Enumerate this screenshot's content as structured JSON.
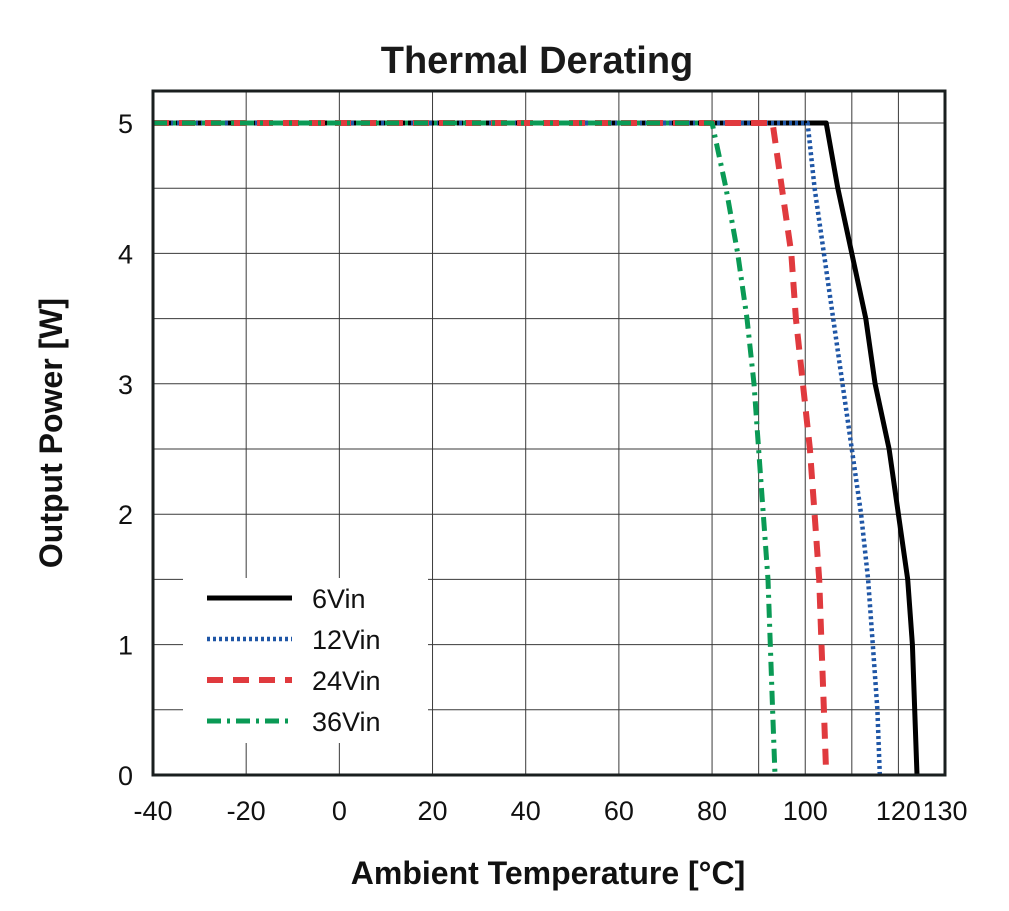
{
  "chart_data": {
    "type": "line",
    "title": "Thermal Derating",
    "xlabel": "Ambient Temperature [°C]",
    "ylabel": "Output Power [W]",
    "xlim": [
      -40,
      130
    ],
    "ylim": [
      0,
      5
    ],
    "x_ticks": [
      -40,
      -20,
      0,
      20,
      40,
      60,
      80,
      100,
      120,
      130
    ],
    "x_tick_labels": [
      "-40",
      "-20",
      "0",
      "20",
      "40",
      "60",
      "80",
      "100",
      "120",
      "130"
    ],
    "y_ticks": [
      0,
      1,
      2,
      3,
      4,
      5
    ],
    "y_tick_labels": [
      "0",
      "1",
      "2",
      "3",
      "4",
      "5"
    ],
    "grid_x_extra": [
      90,
      110
    ],
    "grid_y_minor": true,
    "legend_position": "bottom-left",
    "series": [
      {
        "name": "6Vin",
        "color": "#000000",
        "style": "solid",
        "points": [
          [
            -40,
            5
          ],
          [
            104.5,
            5
          ],
          [
            107,
            4.5
          ],
          [
            110,
            4.0
          ],
          [
            113,
            3.5
          ],
          [
            115,
            3.0
          ],
          [
            118,
            2.5
          ],
          [
            120,
            2.0
          ],
          [
            122,
            1.5
          ],
          [
            123,
            1.0
          ],
          [
            123.5,
            0.5
          ],
          [
            124,
            0
          ]
        ]
      },
      {
        "name": "12Vin",
        "color": "#1f56a6",
        "style": "dotted",
        "points": [
          [
            -40,
            5
          ],
          [
            100.5,
            5
          ],
          [
            102,
            4.5
          ],
          [
            104,
            4.0
          ],
          [
            106,
            3.5
          ],
          [
            108,
            3.0
          ],
          [
            110,
            2.5
          ],
          [
            112,
            2.0
          ],
          [
            113.5,
            1.5
          ],
          [
            114.5,
            1.0
          ],
          [
            115.5,
            0.5
          ],
          [
            116,
            0
          ]
        ]
      },
      {
        "name": "24Vin",
        "color": "#e03a3e",
        "style": "dashed",
        "points": [
          [
            -40,
            5
          ],
          [
            93,
            5
          ],
          [
            95,
            4.5
          ],
          [
            97,
            4.0
          ],
          [
            98,
            3.5
          ],
          [
            99.5,
            3.0
          ],
          [
            101,
            2.5
          ],
          [
            102,
            2.0
          ],
          [
            103,
            1.5
          ],
          [
            103.5,
            1.0
          ],
          [
            104,
            0.5
          ],
          [
            104.5,
            0
          ]
        ]
      },
      {
        "name": "36Vin",
        "color": "#0a9a55",
        "style": "dashdot",
        "points": [
          [
            -40,
            5
          ],
          [
            80,
            5
          ],
          [
            83,
            4.5
          ],
          [
            85.5,
            4.0
          ],
          [
            87.5,
            3.5
          ],
          [
            89,
            3.0
          ],
          [
            90,
            2.5
          ],
          [
            91,
            2.0
          ],
          [
            92,
            1.5
          ],
          [
            92.5,
            1.0
          ],
          [
            93,
            0.5
          ],
          [
            93.5,
            0
          ]
        ]
      }
    ]
  }
}
